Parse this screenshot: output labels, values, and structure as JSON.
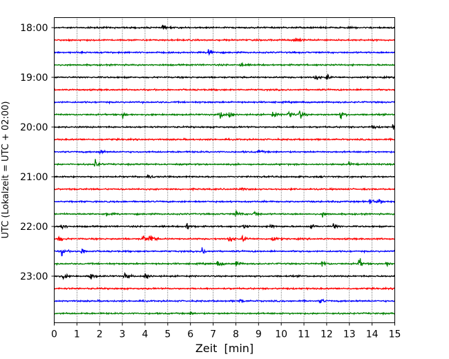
{
  "chart_data": {
    "type": "line",
    "title": "",
    "xlabel": "Zeit  [min]",
    "ylabel": "UTC (Lokalzeit = UTC + 02:00)",
    "xlim": [
      0,
      15
    ],
    "xticks": [
      "0",
      "1",
      "2",
      "3",
      "4",
      "5",
      "6",
      "7",
      "8",
      "9",
      "10",
      "11",
      "12",
      "13",
      "14",
      "15"
    ],
    "yticks": [
      "18:00",
      "19:00",
      "20:00",
      "21:00",
      "22:00",
      "23:00"
    ],
    "grid": "vertical-dotted",
    "colors": [
      "#000000",
      "#ff0000",
      "#0000ff",
      "#008000"
    ],
    "trace_interval_min": 15,
    "traces": [
      {
        "start": "18:00",
        "color": "#000000",
        "events": [
          {
            "t": 4.8,
            "amp": 0.4
          }
        ]
      },
      {
        "start": "18:15",
        "color": "#ff0000",
        "events": [
          {
            "t": 10.6,
            "amp": 0.8
          }
        ]
      },
      {
        "start": "18:30",
        "color": "#0000ff",
        "events": [
          {
            "t": 6.8,
            "amp": 1.0
          }
        ]
      },
      {
        "start": "18:45",
        "color": "#008000",
        "events": [
          {
            "t": 8.2,
            "amp": 0.3
          }
        ]
      },
      {
        "start": "19:00",
        "color": "#000000",
        "events": [
          {
            "t": 11.5,
            "amp": 0.5
          },
          {
            "t": 12.0,
            "amp": 0.4
          }
        ]
      },
      {
        "start": "19:15",
        "color": "#ff0000",
        "events": []
      },
      {
        "start": "19:30",
        "color": "#0000ff",
        "events": []
      },
      {
        "start": "19:45",
        "color": "#008000",
        "events": [
          {
            "t": 3.0,
            "amp": 0.5
          },
          {
            "t": 7.3,
            "amp": 0.7
          },
          {
            "t": 7.7,
            "amp": 0.6
          },
          {
            "t": 9.6,
            "amp": 0.5
          },
          {
            "t": 10.3,
            "amp": 0.8
          },
          {
            "t": 10.8,
            "amp": 0.8
          },
          {
            "t": 12.6,
            "amp": 0.7
          }
        ]
      },
      {
        "start": "20:00",
        "color": "#000000",
        "events": [
          {
            "t": 14.0,
            "amp": 0.3
          },
          {
            "t": 14.9,
            "amp": 0.3
          }
        ]
      },
      {
        "start": "20:15",
        "color": "#ff0000",
        "events": []
      },
      {
        "start": "20:30",
        "color": "#0000ff",
        "events": [
          {
            "t": 2.0,
            "amp": 0.4
          },
          {
            "t": 9.0,
            "amp": 0.3
          }
        ]
      },
      {
        "start": "20:45",
        "color": "#008000",
        "events": [
          {
            "t": 1.8,
            "amp": 0.7
          },
          {
            "t": 13.0,
            "amp": 0.3
          }
        ]
      },
      {
        "start": "21:00",
        "color": "#000000",
        "events": [
          {
            "t": 4.1,
            "amp": 0.5
          }
        ]
      },
      {
        "start": "21:15",
        "color": "#ff0000",
        "events": [
          {
            "t": 8.2,
            "amp": 0.2
          }
        ]
      },
      {
        "start": "21:30",
        "color": "#0000ff",
        "events": [
          {
            "t": 13.9,
            "amp": 0.6
          },
          {
            "t": 14.3,
            "amp": 0.4
          }
        ]
      },
      {
        "start": "21:45",
        "color": "#008000",
        "events": [
          {
            "t": 2.3,
            "amp": 0.4
          },
          {
            "t": 8.0,
            "amp": 0.5
          },
          {
            "t": 8.8,
            "amp": 0.5
          },
          {
            "t": 11.8,
            "amp": 0.4
          }
        ]
      },
      {
        "start": "22:00",
        "color": "#000000",
        "events": [
          {
            "t": 0.3,
            "amp": 0.6
          },
          {
            "t": 5.8,
            "amp": 0.7
          },
          {
            "t": 8.3,
            "amp": 0.4
          },
          {
            "t": 9.5,
            "amp": 0.5
          },
          {
            "t": 11.3,
            "amp": 0.5
          },
          {
            "t": 12.3,
            "amp": 0.5
          }
        ]
      },
      {
        "start": "22:15",
        "color": "#ff0000",
        "events": [
          {
            "t": 0.2,
            "amp": 0.6
          },
          {
            "t": 4.2,
            "amp": 0.8
          },
          {
            "t": 3.9,
            "amp": 0.6
          },
          {
            "t": 7.7,
            "amp": 0.6
          },
          {
            "t": 8.3,
            "amp": 0.5
          },
          {
            "t": 9.6,
            "amp": 0.5
          }
        ]
      },
      {
        "start": "22:30",
        "color": "#0000ff",
        "events": [
          {
            "t": 0.3,
            "amp": 0.7
          },
          {
            "t": 1.2,
            "amp": 0.6
          },
          {
            "t": 6.5,
            "amp": 0.6
          }
        ]
      },
      {
        "start": "22:45",
        "color": "#008000",
        "events": [
          {
            "t": 7.2,
            "amp": 0.5
          },
          {
            "t": 8.0,
            "amp": 0.5
          },
          {
            "t": 11.8,
            "amp": 0.5
          },
          {
            "t": 13.4,
            "amp": 1.0
          },
          {
            "t": 14.6,
            "amp": 0.4
          }
        ]
      },
      {
        "start": "23:00",
        "color": "#000000",
        "events": [
          {
            "t": 0.4,
            "amp": 0.5
          },
          {
            "t": 1.6,
            "amp": 0.5
          },
          {
            "t": 3.1,
            "amp": 0.6
          },
          {
            "t": 4.0,
            "amp": 0.6
          }
        ]
      },
      {
        "start": "23:15",
        "color": "#ff0000",
        "events": []
      },
      {
        "start": "23:30",
        "color": "#0000ff",
        "events": [
          {
            "t": 8.2,
            "amp": 0.3
          },
          {
            "t": 11.7,
            "amp": 0.4
          }
        ]
      },
      {
        "start": "23:45",
        "color": "#008000",
        "events": [
          {
            "t": 6.0,
            "amp": 0.2
          }
        ]
      }
    ]
  }
}
